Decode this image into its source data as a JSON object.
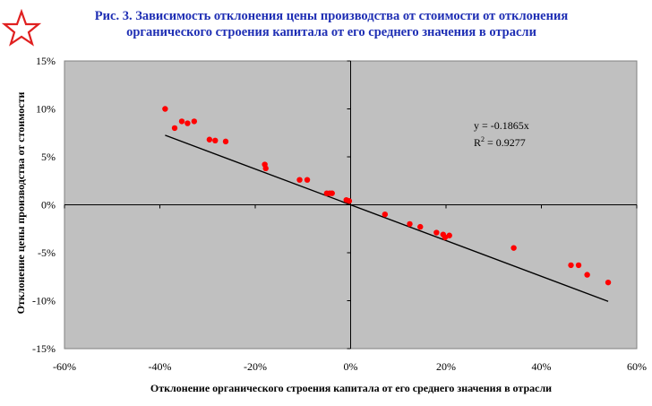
{
  "figure": {
    "title": "Рис. 3. Зависимость отклонения цены производства от стоимости от отклонения органического строения капитала от его среднего значения в отрасли",
    "logo_icon": "red-star-outline-icon",
    "title_color": "#1f2fb4"
  },
  "chart_data": {
    "type": "scatter",
    "title": "Рис. 3. Зависимость отклонения цены производства от стоимости от отклонения органического строения капитала от его среднего значения в отрасли",
    "xlabel": "Отклонение органического строения капитала от его среднего значения в отрасли",
    "ylabel": "Отклонение цены производства от стоимости",
    "xlim": [
      -0.6,
      0.6
    ],
    "ylim": [
      -0.15,
      0.15
    ],
    "x_ticks": [
      -0.6,
      -0.4,
      -0.2,
      0,
      0.2,
      0.4,
      0.6
    ],
    "x_tick_labels": [
      "-60%",
      "-40%",
      "-20%",
      "0%",
      "20%",
      "40%",
      "60%"
    ],
    "y_ticks": [
      -0.15,
      -0.1,
      -0.05,
      0,
      0.05,
      0.1,
      0.15
    ],
    "y_tick_labels": [
      "-15%",
      "-10%",
      "-5%",
      "0%",
      "5%",
      "10%",
      "15%"
    ],
    "grid": false,
    "plot_background": "#c0c0c0",
    "point_color": "#ff0000",
    "trendline_color": "#000000",
    "points": [
      {
        "x": -0.389,
        "y": 0.1
      },
      {
        "x": -0.369,
        "y": 0.08
      },
      {
        "x": -0.354,
        "y": 0.087
      },
      {
        "x": -0.342,
        "y": 0.085
      },
      {
        "x": -0.328,
        "y": 0.087
      },
      {
        "x": -0.296,
        "y": 0.068
      },
      {
        "x": -0.284,
        "y": 0.067
      },
      {
        "x": -0.262,
        "y": 0.066
      },
      {
        "x": -0.18,
        "y": 0.042
      },
      {
        "x": -0.178,
        "y": 0.038
      },
      {
        "x": -0.107,
        "y": 0.026
      },
      {
        "x": -0.091,
        "y": 0.026
      },
      {
        "x": -0.05,
        "y": 0.012
      },
      {
        "x": -0.044,
        "y": 0.012
      },
      {
        "x": -0.039,
        "y": 0.012
      },
      {
        "x": -0.009,
        "y": 0.005
      },
      {
        "x": -0.003,
        "y": 0.004
      },
      {
        "x": 0.072,
        "y": -0.01
      },
      {
        "x": 0.124,
        "y": -0.02
      },
      {
        "x": 0.146,
        "y": -0.023
      },
      {
        "x": 0.18,
        "y": -0.029
      },
      {
        "x": 0.194,
        "y": -0.031
      },
      {
        "x": 0.198,
        "y": -0.034
      },
      {
        "x": 0.207,
        "y": -0.032
      },
      {
        "x": 0.342,
        "y": -0.045
      },
      {
        "x": 0.462,
        "y": -0.063
      },
      {
        "x": 0.478,
        "y": -0.063
      },
      {
        "x": 0.496,
        "y": -0.073
      },
      {
        "x": 0.54,
        "y": -0.081
      }
    ],
    "trendline": {
      "slope": -0.1865,
      "x_range": [
        -0.389,
        0.54
      ],
      "equation": "y = -0.1865x",
      "r2_label": "R",
      "r2_superscript": "2",
      "r2_value": " = 0.9277"
    }
  }
}
